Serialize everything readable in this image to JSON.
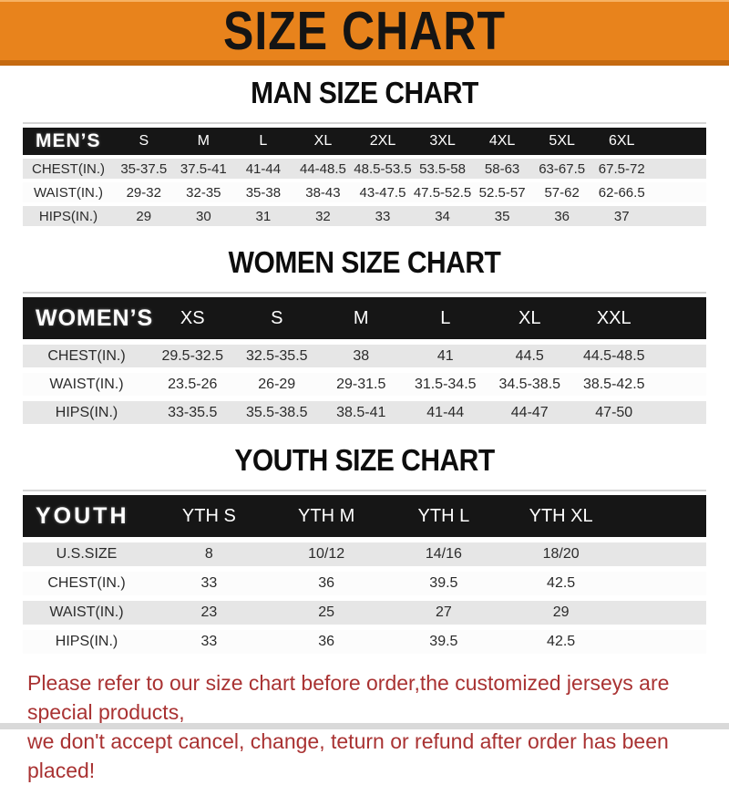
{
  "banner": {
    "title": "SIZE CHART"
  },
  "colors": {
    "banner_bg": "#E8831C",
    "banner_edge": "#C56A10",
    "header_bar": "#161616",
    "stripe_gray": "#E6E6E6",
    "note_red": "#A93232"
  },
  "sections": [
    {
      "heading": "MAN SIZE CHART",
      "table": {
        "corner": "MEN’S",
        "columns": [
          "S",
          "M",
          "L",
          "XL",
          "2XL",
          "3XL",
          "4XL",
          "5XL",
          "6XL"
        ],
        "rows": [
          {
            "label": "CHEST(IN.)",
            "values": [
              "35-37.5",
              "37.5-41",
              "41-44",
              "44-48.5",
              "48.5-53.5",
              "53.5-58",
              "58-63",
              "63-67.5",
              "67.5-72"
            ]
          },
          {
            "label": "WAIST(IN.)",
            "values": [
              "29-32",
              "32-35",
              "35-38",
              "38-43",
              "43-47.5",
              "47.5-52.5",
              "52.5-57",
              "57-62",
              "62-66.5"
            ]
          },
          {
            "label": "HIPS(IN.)",
            "values": [
              "29",
              "30",
              "31",
              "32",
              "33",
              "34",
              "35",
              "36",
              "37"
            ]
          }
        ]
      }
    },
    {
      "heading": "WOMEN SIZE CHART",
      "table": {
        "corner": "WOMEN’S",
        "columns": [
          "XS",
          "S",
          "M",
          "L",
          "XL",
          "XXL"
        ],
        "rows": [
          {
            "label": "CHEST(IN.)",
            "values": [
              "29.5-32.5",
              "32.5-35.5",
              "38",
              "41",
              "44.5",
              "44.5-48.5"
            ]
          },
          {
            "label": "WAIST(IN.)",
            "values": [
              "23.5-26",
              "26-29",
              "29-31.5",
              "31.5-34.5",
              "34.5-38.5",
              "38.5-42.5"
            ]
          },
          {
            "label": "HIPS(IN.)",
            "values": [
              "33-35.5",
              "35.5-38.5",
              "38.5-41",
              "41-44",
              "44-47",
              "47-50"
            ]
          }
        ]
      }
    },
    {
      "heading": "YOUTH SIZE CHART",
      "table": {
        "corner": "YOUTH",
        "columns": [
          "YTH S",
          "YTH M",
          "YTH L",
          "YTH XL"
        ],
        "rows": [
          {
            "label": "U.S.SIZE",
            "values": [
              "8",
              "10/12",
              "14/16",
              "18/20"
            ]
          },
          {
            "label": "CHEST(IN.)",
            "values": [
              "33",
              "36",
              "39.5",
              "42.5"
            ]
          },
          {
            "label": "WAIST(IN.)",
            "values": [
              "23",
              "25",
              "27",
              "29"
            ]
          },
          {
            "label": "HIPS(IN.)",
            "values": [
              "33",
              "36",
              "39.5",
              "42.5"
            ]
          }
        ]
      }
    }
  ],
  "footer": {
    "line1": "Please refer to our size chart before order,the customized jerseys are special products,",
    "line2": "we don't accept cancel, change, teturn or refund after order has been placed!"
  }
}
